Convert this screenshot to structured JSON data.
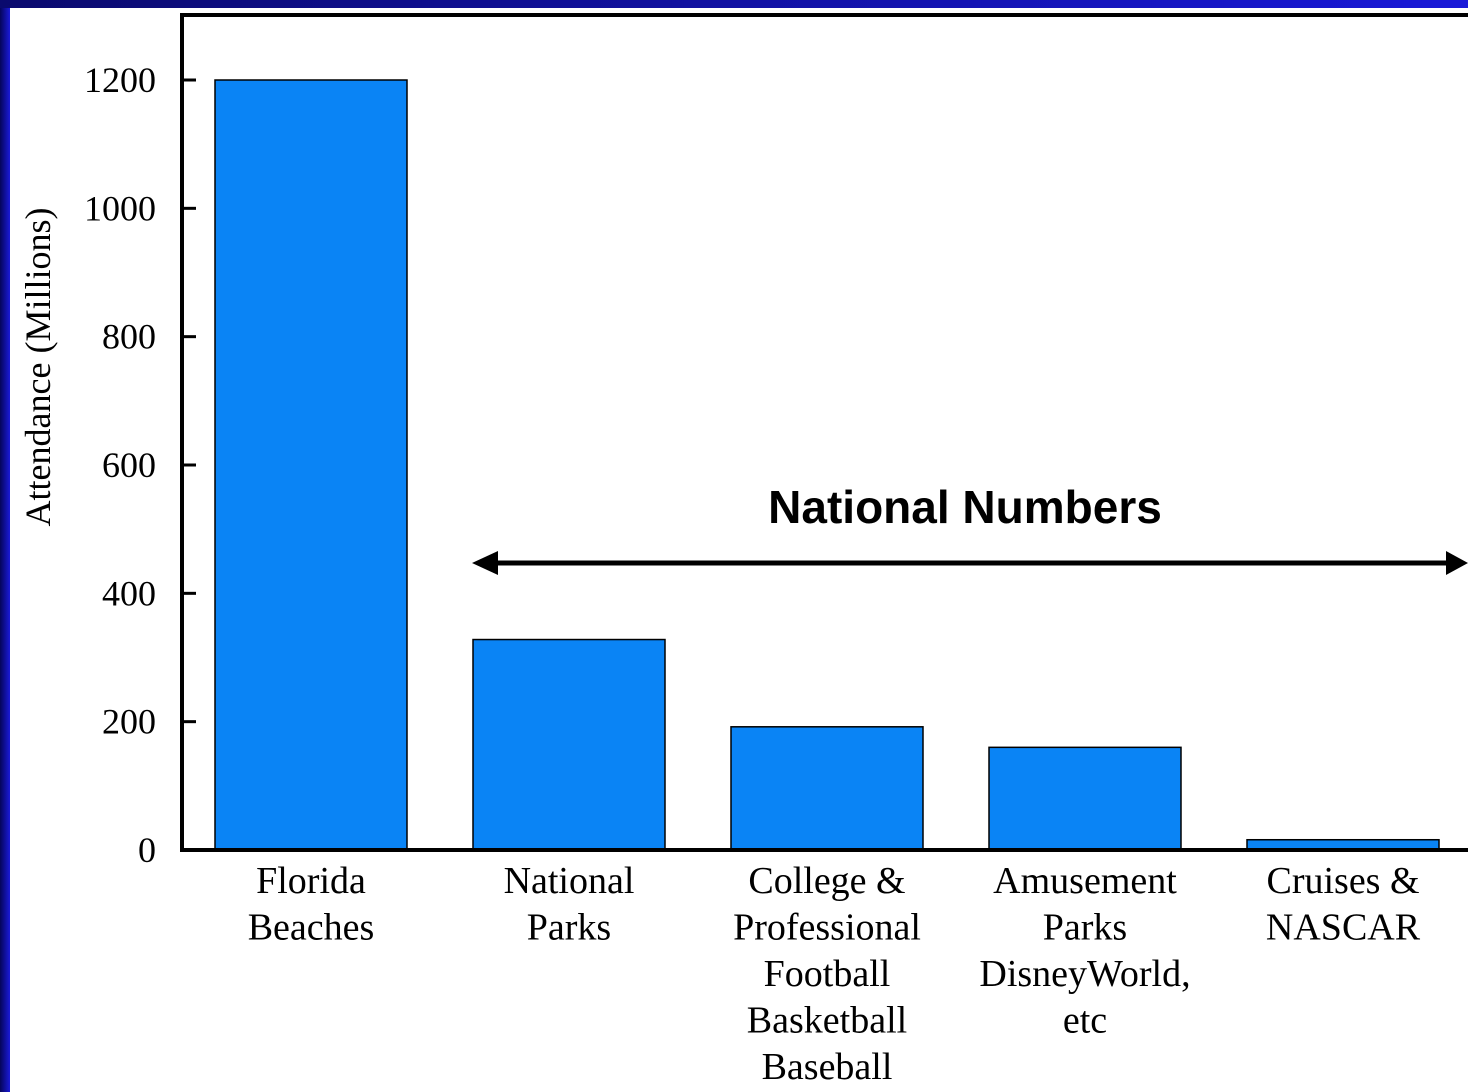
{
  "colors": {
    "bar": "#0a84f5",
    "frame": "#0a0a8c",
    "axis": "#000000"
  },
  "chart_data": {
    "type": "bar",
    "categories": [
      [
        "Florida",
        "Beaches"
      ],
      [
        "National",
        "Parks"
      ],
      [
        "College &",
        "Professional",
        "Football",
        "Basketball",
        "Baseball"
      ],
      [
        "Amusement",
        "Parks",
        "DisneyWorld,",
        "etc"
      ],
      [
        "Cruises &",
        "NASCAR"
      ]
    ],
    "values": [
      1200,
      328,
      192,
      160,
      16
    ],
    "ylabel": "Attendance (Millions)",
    "xlabel": "",
    "ylim": [
      0,
      1300
    ],
    "yticks": [
      0,
      200,
      400,
      600,
      800,
      1000,
      1200
    ],
    "grid": false,
    "legend": "none",
    "annotation": {
      "text": "National Numbers",
      "arrow": "double-headed",
      "from_category": 1,
      "to_category": 4
    }
  }
}
